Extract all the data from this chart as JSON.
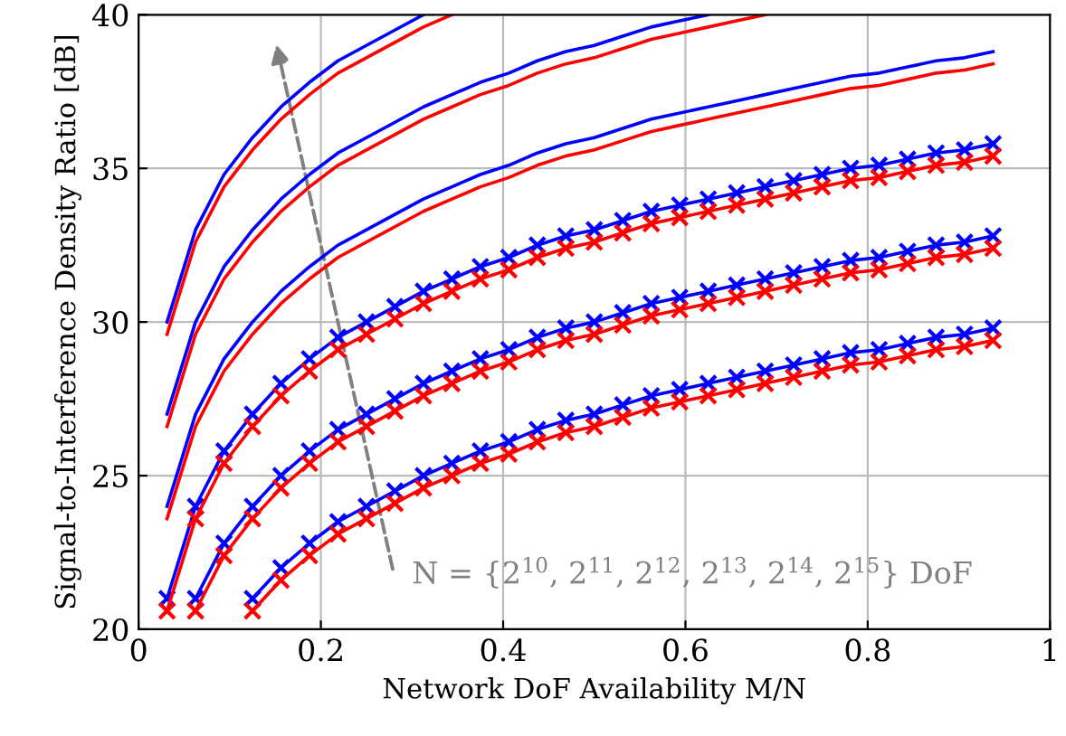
{
  "chart_data": {
    "type": "line",
    "xlabel": "Network DoF Availability M/N",
    "ylabel": "Signal-to-Interference Density Ratio [dB]",
    "annotations": [
      "N = {2$^{10}$, 2$^{11}$, 2$^{12}$, 2$^{13}$, 2$^{14}$, 2$^{15}$} DoF"
    ],
    "x": [
      0.03125,
      0.0625,
      0.09375,
      0.125,
      0.15625,
      0.1875,
      0.21875,
      0.25,
      0.28125,
      0.3125,
      0.34375,
      0.375,
      0.40625,
      0.4375,
      0.46875,
      0.5,
      0.53125,
      0.5625,
      0.59375,
      0.625,
      0.65625,
      0.6875,
      0.71875,
      0.75,
      0.78125,
      0.8125,
      0.84375,
      0.875,
      0.90625,
      0.9375
    ],
    "xlim": [
      0,
      1
    ],
    "xticks": [
      0,
      0.2,
      0.4,
      0.6,
      0.8,
      1
    ],
    "ylim": [
      20,
      40
    ],
    "yticks": [
      20,
      25,
      30,
      35,
      40
    ],
    "grid": true,
    "line_style": "solid",
    "series": [
      {
        "color": "#0000ff",
        "marker": "cross",
        "values": [
          null,
          null,
          null,
          21,
          22,
          22.8,
          23.5,
          24,
          24.5,
          25,
          25.4,
          25.8,
          26.1,
          26.5,
          26.8,
          27,
          27.3,
          27.6,
          27.8,
          28,
          28.2,
          28.4,
          28.6,
          28.8,
          29,
          29.1,
          29.3,
          29.5,
          29.6,
          29.8
        ]
      },
      {
        "color": "#ff0000",
        "marker": "cross",
        "values": [
          null,
          null,
          null,
          20.6,
          21.6,
          22.4,
          23.1,
          23.6,
          24.1,
          24.6,
          25,
          25.4,
          25.7,
          26.1,
          26.4,
          26.6,
          26.9,
          27.2,
          27.4,
          27.6,
          27.8,
          28,
          28.2,
          28.4,
          28.6,
          28.7,
          28.9,
          29.1,
          29.2,
          29.4
        ]
      },
      {
        "color": "#0000ff",
        "marker": "cross",
        "values": [
          null,
          21,
          22.8,
          24,
          25,
          25.8,
          26.5,
          27,
          27.5,
          28,
          28.4,
          28.8,
          29.1,
          29.5,
          29.8,
          30,
          30.3,
          30.6,
          30.8,
          31,
          31.2,
          31.4,
          31.6,
          31.8,
          32,
          32.1,
          32.3,
          32.5,
          32.6,
          32.8
        ]
      },
      {
        "color": "#ff0000",
        "marker": "cross",
        "values": [
          null,
          20.6,
          22.4,
          23.6,
          24.6,
          25.4,
          26.1,
          26.6,
          27.1,
          27.6,
          28,
          28.4,
          28.7,
          29.1,
          29.4,
          29.6,
          29.9,
          30.2,
          30.4,
          30.6,
          30.8,
          31,
          31.2,
          31.4,
          31.6,
          31.7,
          31.9,
          32.1,
          32.2,
          32.4
        ]
      },
      {
        "color": "#0000ff",
        "marker": "cross",
        "values": [
          21,
          24,
          25.8,
          27,
          28,
          28.8,
          29.5,
          30,
          30.5,
          31,
          31.4,
          31.8,
          32.1,
          32.5,
          32.8,
          33,
          33.3,
          33.6,
          33.8,
          34,
          34.2,
          34.4,
          34.6,
          34.8,
          35,
          35.1,
          35.3,
          35.5,
          35.6,
          35.8
        ]
      },
      {
        "color": "#ff0000",
        "marker": "cross",
        "values": [
          20.6,
          23.6,
          25.4,
          26.6,
          27.6,
          28.4,
          29.1,
          29.6,
          30.1,
          30.6,
          31,
          31.4,
          31.7,
          32.1,
          32.4,
          32.6,
          32.9,
          33.2,
          33.4,
          33.6,
          33.8,
          34,
          34.2,
          34.4,
          34.6,
          34.7,
          34.9,
          35.1,
          35.2,
          35.4
        ]
      },
      {
        "color": "#0000ff",
        "marker": "none",
        "values": [
          24,
          27,
          28.8,
          30,
          31,
          31.8,
          32.5,
          33,
          33.5,
          34,
          34.4,
          34.8,
          35.1,
          35.5,
          35.8,
          36,
          36.3,
          36.6,
          36.8,
          37,
          37.2,
          37.4,
          37.6,
          37.8,
          38,
          38.1,
          38.3,
          38.5,
          38.6,
          38.8
        ]
      },
      {
        "color": "#ff0000",
        "marker": "none",
        "values": [
          23.6,
          26.6,
          28.4,
          29.6,
          30.6,
          31.4,
          32.1,
          32.6,
          33.1,
          33.6,
          34,
          34.4,
          34.7,
          35.1,
          35.4,
          35.6,
          35.9,
          36.2,
          36.4,
          36.6,
          36.8,
          37,
          37.2,
          37.4,
          37.6,
          37.7,
          37.9,
          38.1,
          38.2,
          38.4
        ]
      },
      {
        "color": "#0000ff",
        "marker": "none",
        "values": [
          27,
          30,
          31.8,
          33,
          34,
          34.8,
          35.5,
          36,
          36.5,
          37,
          37.4,
          37.8,
          38.1,
          38.5,
          38.8,
          39,
          39.3,
          39.6,
          39.8,
          40,
          null,
          null,
          null,
          null,
          null,
          null,
          null,
          null,
          null,
          null
        ]
      },
      {
        "color": "#ff0000",
        "marker": "none",
        "values": [
          26.6,
          29.6,
          31.4,
          32.6,
          33.6,
          34.4,
          35.1,
          35.6,
          36.1,
          36.6,
          37,
          37.4,
          37.7,
          38.1,
          38.4,
          38.6,
          38.9,
          39.2,
          39.4,
          39.6,
          39.8,
          40,
          null,
          null,
          null,
          null,
          null,
          null,
          null,
          null
        ]
      },
      {
        "color": "#0000ff",
        "marker": "none",
        "values": [
          30,
          33,
          34.8,
          36,
          37,
          37.8,
          38.5,
          39,
          39.5,
          40,
          null,
          null,
          null,
          null,
          null,
          null,
          null,
          null,
          null,
          null,
          null,
          null,
          null,
          null,
          null,
          null,
          null,
          null,
          null,
          null
        ]
      },
      {
        "color": "#ff0000",
        "marker": "none",
        "values": [
          29.6,
          32.6,
          34.4,
          35.6,
          36.6,
          37.4,
          38.1,
          38.6,
          39.1,
          39.6,
          40,
          null,
          null,
          null,
          null,
          null,
          null,
          null,
          null,
          null,
          null,
          null,
          null,
          null,
          null,
          null,
          null,
          null,
          null,
          null
        ]
      }
    ]
  }
}
